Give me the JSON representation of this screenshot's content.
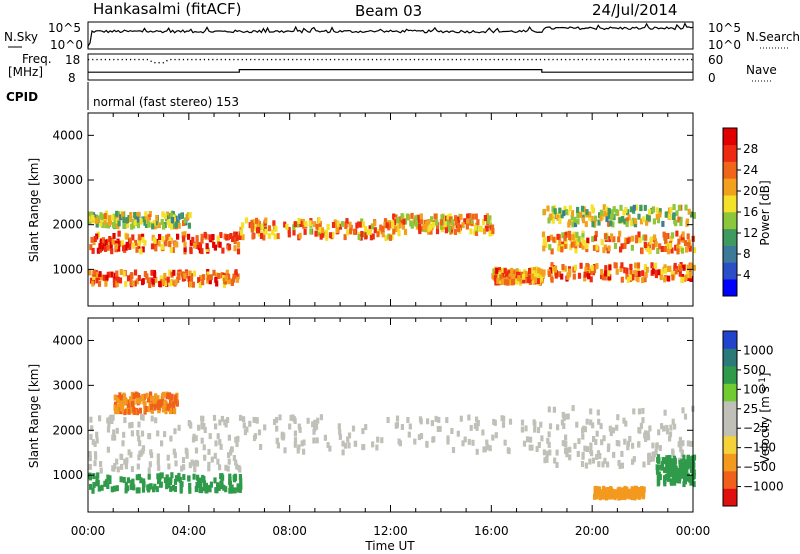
{
  "header": {
    "station": "Hankasalmi (fitACF)",
    "beam": "Beam 03",
    "date": "24/Jul/2014"
  },
  "top_panels": {
    "nsky": {
      "left_label": "N.Sky",
      "right_label": "N.Search",
      "left_ticks": [
        "10^5",
        "10^0"
      ],
      "right_ticks": [
        "10^5",
        "10^0"
      ],
      "log_range": [
        0,
        5
      ]
    },
    "freq": {
      "left_label_1": "Freq.",
      "left_label_2": "[MHz]",
      "left_ticks": [
        "18",
        "8"
      ],
      "right_label": "Nave",
      "right_ticks": [
        "60",
        "0"
      ],
      "freq_range": [
        8,
        18
      ],
      "nave_range": [
        0,
        60
      ]
    },
    "cpid": {
      "label": "CPID",
      "mode_text": "normal (fast stereo) 153"
    }
  },
  "chart_data": [
    {
      "type": "heatmap",
      "name": "power",
      "ylabel": "Slant Range [km]",
      "xlabel": "Time UT",
      "xlim": [
        0,
        24
      ],
      "ylim": [
        180,
        4500
      ],
      "yticks": [
        1000,
        2000,
        3000,
        4000
      ],
      "colorbar": {
        "label": "Power [dB]",
        "ticks": [
          "28",
          "24",
          "20",
          "16",
          "12",
          "8",
          "4"
        ],
        "range": [
          0,
          32
        ],
        "colors": [
          "#0000ff",
          "#2a4ec8",
          "#3d7a9a",
          "#3f9a60",
          "#8cc63a",
          "#f3e12a",
          "#f2a11e",
          "#f0651a",
          "#ee2a10",
          "#e00000"
        ]
      },
      "echo_bands": [
        {
          "t": [
            0,
            6
          ],
          "range_km": [
            650,
            950
          ],
          "power_db": 24
        },
        {
          "t": [
            0,
            6
          ],
          "range_km": [
            1400,
            1800
          ],
          "power_db": 25
        },
        {
          "t": [
            0,
            4
          ],
          "range_km": [
            1950,
            2250
          ],
          "power_db": 16
        },
        {
          "t": [
            6,
            12
          ],
          "range_km": [
            1700,
            2100
          ],
          "power_db": 22
        },
        {
          "t": [
            12,
            16
          ],
          "range_km": [
            1800,
            2200
          ],
          "power_db": 20
        },
        {
          "t": [
            16,
            18
          ],
          "range_km": [
            700,
            1000
          ],
          "power_db": 22
        },
        {
          "t": [
            18,
            24
          ],
          "range_km": [
            750,
            1100
          ],
          "power_db": 24
        },
        {
          "t": [
            18,
            24
          ],
          "range_km": [
            1400,
            1800
          ],
          "power_db": 22
        },
        {
          "t": [
            18,
            24
          ],
          "range_km": [
            2000,
            2400
          ],
          "power_db": 16
        }
      ]
    },
    {
      "type": "heatmap",
      "name": "velocity",
      "ylabel": "Slant Range [km]",
      "xlabel": "Time UT",
      "xlim": [
        0,
        24
      ],
      "ylim": [
        180,
        4500
      ],
      "yticks": [
        1000,
        2000,
        3000,
        4000
      ],
      "xticks": [
        "00:00",
        "04:00",
        "08:00",
        "12:00",
        "16:00",
        "20:00",
        "00:00"
      ],
      "colorbar": {
        "label": "Velocity [m s",
        "label_sup": "-1",
        "label_end": "]",
        "ticks": [
          "1000",
          "500",
          "100",
          "25",
          "−25",
          "−100",
          "−500",
          "−1000"
        ],
        "colors": [
          "#2244cc",
          "#2a7a7a",
          "#2e9a4a",
          "#70cc30",
          "#c0c0b8",
          "#c0c0b8",
          "#f5d23a",
          "#f39a1e",
          "#f0601a",
          "#e01010"
        ]
      },
      "echo_bands": [
        {
          "t": [
            0,
            6
          ],
          "range_km": [
            650,
            1000
          ],
          "velocity": 100
        },
        {
          "t": [
            0,
            6
          ],
          "range_km": [
            1100,
            2300
          ],
          "velocity": 0
        },
        {
          "t": [
            1,
            3.5
          ],
          "range_km": [
            2400,
            2800
          ],
          "velocity": -500
        },
        {
          "t": [
            6,
            18
          ],
          "range_km": [
            1500,
            2300
          ],
          "velocity": 0
        },
        {
          "t": [
            18,
            24
          ],
          "range_km": [
            1200,
            2500
          ],
          "velocity": 0
        },
        {
          "t": [
            20,
            22
          ],
          "range_km": [
            500,
            700
          ],
          "velocity": -200
        },
        {
          "t": [
            22.5,
            24
          ],
          "range_km": [
            800,
            1400
          ],
          "velocity": 100
        }
      ]
    }
  ]
}
